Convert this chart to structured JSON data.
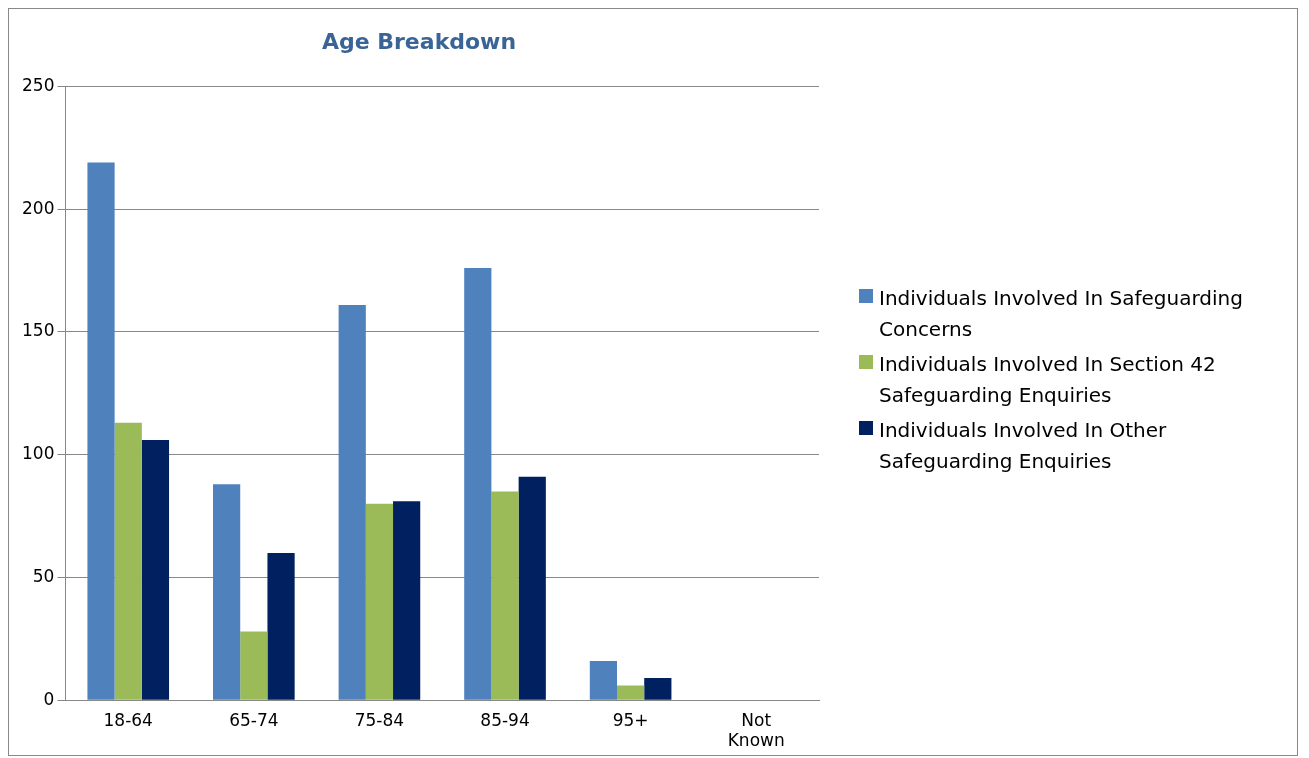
{
  "chart_data": {
    "type": "bar",
    "title": "Age Breakdown",
    "categories": [
      "18-64",
      "65-74",
      "75-84",
      "85-94",
      "95+",
      "Not Known"
    ],
    "series": [
      {
        "name": "Individuals Involved In Safeguarding Concerns",
        "color": "#4f81bd",
        "values": [
          219,
          88,
          161,
          176,
          16,
          0
        ]
      },
      {
        "name": "Individuals Involved In Section 42 Safeguarding Enquiries",
        "color": "#9bbb59",
        "values": [
          113,
          28,
          80,
          85,
          6,
          0
        ]
      },
      {
        "name": "Individuals Involved In Other Safeguarding Enquiries",
        "color": "#002060",
        "values": [
          106,
          60,
          81,
          91,
          9,
          0
        ]
      }
    ],
    "ylim": [
      0,
      250
    ],
    "yticks": [
      0,
      50,
      100,
      150,
      200,
      250
    ],
    "grid": "y",
    "legend": "right"
  }
}
